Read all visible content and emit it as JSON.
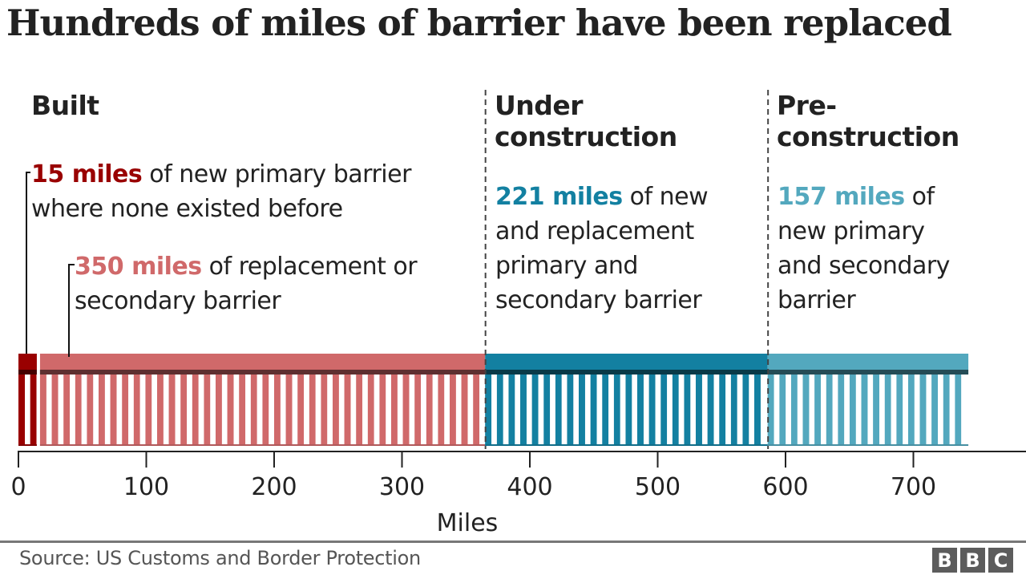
{
  "chart_data": {
    "type": "bar",
    "orientation": "horizontal-stacked",
    "title": "Hundreds of miles of barrier have been replaced",
    "xlabel": "Miles",
    "ylabel": "",
    "xlim": [
      0,
      743
    ],
    "xticks": [
      0,
      100,
      200,
      300,
      400,
      500,
      600,
      700
    ],
    "xtick_labels": [
      "0",
      "100",
      "200",
      "300",
      "400",
      "500",
      "600",
      "700"
    ],
    "grid": false,
    "sections": [
      {
        "name": "Built",
        "label_lines": [
          "Built"
        ]
      },
      {
        "name": "Under construction",
        "label_lines": [
          "Under",
          "construction"
        ]
      },
      {
        "name": "Pre-construction",
        "label_lines": [
          "Pre-",
          "construction"
        ]
      }
    ],
    "series": [
      {
        "name": "New primary barrier where none existed before",
        "section": "Built",
        "start": 0,
        "value": 15,
        "color": "#990000"
      },
      {
        "name": "Replacement or secondary barrier",
        "section": "Built",
        "start": 15,
        "value": 350,
        "color": "#d0696a"
      },
      {
        "name": "New and replacement primary and secondary barrier",
        "section": "Under construction",
        "start": 365,
        "value": 221,
        "color": "#1380a1"
      },
      {
        "name": "New primary and secondary barrier",
        "section": "Pre-construction",
        "start": 586,
        "value": 157,
        "color": "#53a8be"
      }
    ],
    "annotations": [
      {
        "bold": "15 miles",
        "lines": [
          " of new primary barrier",
          "where none existed before"
        ],
        "color": "#990000"
      },
      {
        "bold": "350 miles",
        "lines": [
          " of replacement or",
          "secondary barrier"
        ],
        "color": "#d0696a"
      },
      {
        "bold": "221 miles",
        "lines": [
          " of new",
          "and replacement",
          "primary and",
          "secondary barrier"
        ],
        "color": "#1380a1"
      },
      {
        "bold": "157 miles",
        "lines": [
          " of",
          "new primary",
          "and secondary",
          "barrier"
        ],
        "color": "#53a8be"
      }
    ]
  },
  "footer": {
    "source": "Source: US Customs and Border Protection",
    "logo": [
      "B",
      "B",
      "C"
    ]
  }
}
